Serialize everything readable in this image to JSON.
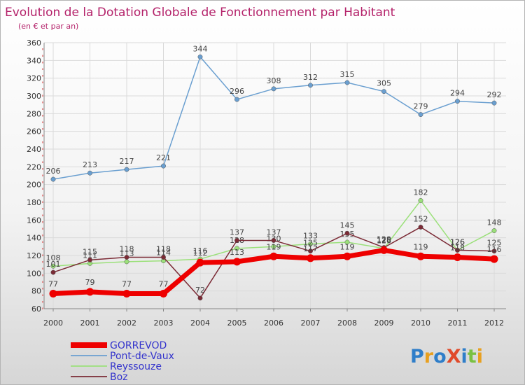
{
  "chart_data": {
    "type": "line",
    "title": "Evolution de la Dotation Globale de Fonctionnement par Habitant",
    "subtitle": "(en € et par an)",
    "xlabel": "",
    "ylabel": "",
    "categories": [
      "2000",
      "2001",
      "2002",
      "2003",
      "2004",
      "2005",
      "2006",
      "2007",
      "2008",
      "2009",
      "2010",
      "2011",
      "2012"
    ],
    "ylim": [
      60,
      360
    ],
    "yticks": [
      60,
      80,
      100,
      120,
      140,
      160,
      180,
      200,
      220,
      240,
      260,
      280,
      300,
      320,
      340,
      360
    ],
    "grid": true,
    "legend_position": "bottom-left",
    "series": [
      {
        "name": "Pont-de-Vaux",
        "color": "#6a9fd0",
        "values": [
          206,
          213,
          217,
          221,
          344,
          296,
          308,
          312,
          315,
          305,
          279,
          294,
          292
        ]
      },
      {
        "name": "Reyssouze",
        "color": "#9be07a",
        "values": [
          108,
          111,
          113,
          114,
          116,
          128,
          130,
          133,
          135,
          128,
          182,
          126,
          148
        ]
      },
      {
        "name": "Boz",
        "color": "#7b2a35",
        "values": [
          101,
          115,
          118,
          118,
          72,
          137,
          137,
          125,
          145,
          129,
          152,
          126,
          125
        ]
      },
      {
        "name": "GORREVOD",
        "color": "#ee0000",
        "values": [
          77,
          79,
          77,
          77,
          112,
          113,
          119,
          117,
          119,
          126,
          119,
          118,
          116
        ]
      }
    ],
    "data_labels": {
      "Pont-de-Vaux": [
        "206",
        "213",
        "217",
        "221",
        "344",
        "296",
        "308",
        "312",
        "315",
        "305",
        "279",
        "294",
        "292"
      ],
      "Reyssouze": [
        "108",
        "111",
        "113",
        "114",
        "116",
        "128",
        "130",
        "133",
        "135",
        "128",
        "182",
        "126",
        "148"
      ],
      "Boz": [
        "101",
        "115",
        "118",
        "118",
        "72",
        "137",
        "137",
        "125",
        "145",
        "129",
        "152",
        "126",
        "125"
      ],
      "GORREVOD": [
        "77",
        "79",
        "77",
        "77",
        "112",
        "113",
        "119",
        "117",
        "119",
        "126",
        "119",
        "118",
        "116"
      ]
    },
    "legend_order": [
      "GORREVOD",
      "Pont-de-Vaux",
      "Reyssouze",
      "Boz"
    ],
    "legend_colors": {
      "GORREVOD": "#3333cc",
      "Pont-de-Vaux": "#3333cc",
      "Reyssouze": "#3333cc",
      "Boz": "#3333cc"
    }
  },
  "logo": {
    "text": "ProXiti"
  }
}
